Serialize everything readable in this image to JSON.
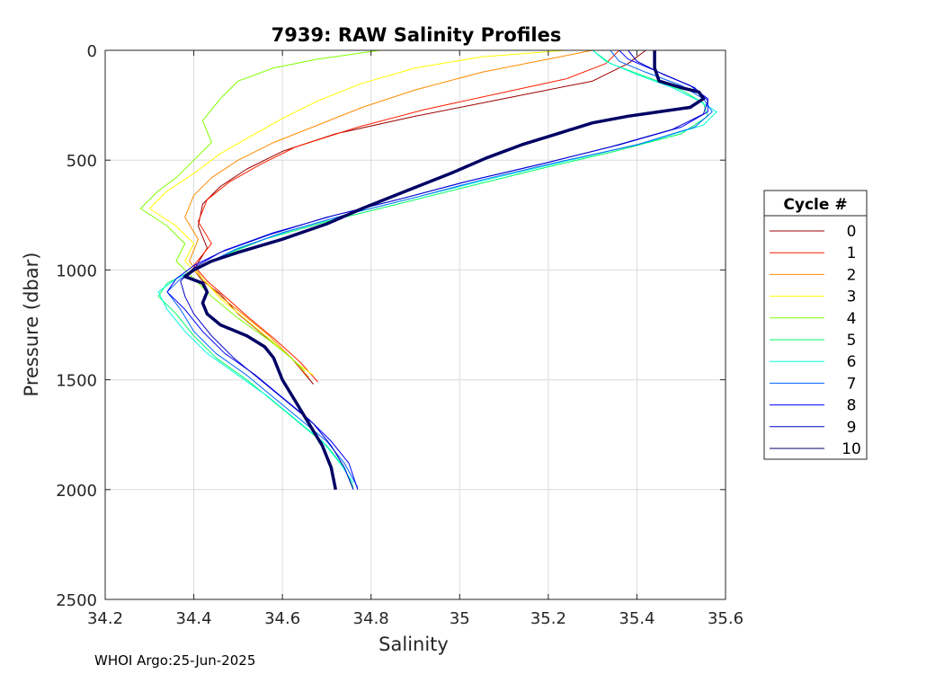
{
  "chart_data": {
    "type": "line",
    "title": "7939: RAW Salinity Profiles",
    "xlabel": "Salinity",
    "ylabel": "Pressure (dbar)",
    "xlim": [
      34.2,
      35.6
    ],
    "ylim": [
      0,
      2500
    ],
    "y_reversed": true,
    "grid": true,
    "xticks": [
      34.2,
      34.4,
      34.6,
      34.8,
      35,
      35.2,
      35.4,
      35.6
    ],
    "xtick_labels": [
      "34.2",
      "34.4",
      "34.6",
      "34.8",
      "35",
      "35.2",
      "35.4",
      "35.6"
    ],
    "yticks": [
      0,
      500,
      1000,
      1500,
      2000,
      2500
    ],
    "ytick_labels": [
      "0",
      "500",
      "1000",
      "1500",
      "2000",
      "2500"
    ],
    "legend": {
      "title": "Cycle #",
      "placement": "right-outside"
    },
    "series": [
      {
        "name": "0",
        "color": "#9b0000",
        "width": 1,
        "points": [
          [
            35.42,
            0
          ],
          [
            35.38,
            60
          ],
          [
            35.3,
            140
          ],
          [
            35.1,
            220
          ],
          [
            34.9,
            300
          ],
          [
            34.72,
            380
          ],
          [
            34.6,
            460
          ],
          [
            34.52,
            540
          ],
          [
            34.46,
            620
          ],
          [
            34.42,
            700
          ],
          [
            34.41,
            800
          ],
          [
            34.43,
            900
          ],
          [
            34.4,
            1000
          ],
          [
            34.42,
            1050
          ],
          [
            34.46,
            1110
          ],
          [
            34.5,
            1200
          ],
          [
            34.56,
            1300
          ],
          [
            34.62,
            1400
          ],
          [
            34.67,
            1520
          ]
        ]
      },
      {
        "name": "1",
        "color": "#ff1f00",
        "width": 1,
        "points": [
          [
            35.36,
            0
          ],
          [
            35.33,
            60
          ],
          [
            35.24,
            130
          ],
          [
            35.08,
            200
          ],
          [
            34.92,
            270
          ],
          [
            34.77,
            350
          ],
          [
            34.63,
            440
          ],
          [
            34.55,
            520
          ],
          [
            34.48,
            600
          ],
          [
            34.43,
            680
          ],
          [
            34.41,
            780
          ],
          [
            34.44,
            880
          ],
          [
            34.4,
            980
          ],
          [
            34.43,
            1050
          ],
          [
            34.47,
            1120
          ],
          [
            34.52,
            1210
          ],
          [
            34.58,
            1310
          ],
          [
            34.64,
            1420
          ],
          [
            34.68,
            1510
          ]
        ]
      },
      {
        "name": "2",
        "color": "#ff8c00",
        "width": 1,
        "points": [
          [
            35.3,
            0
          ],
          [
            35.2,
            40
          ],
          [
            35.05,
            100
          ],
          [
            34.9,
            180
          ],
          [
            34.78,
            260
          ],
          [
            34.68,
            340
          ],
          [
            34.58,
            420
          ],
          [
            34.5,
            500
          ],
          [
            34.44,
            580
          ],
          [
            34.4,
            660
          ],
          [
            34.38,
            760
          ],
          [
            34.41,
            860
          ],
          [
            34.39,
            960
          ],
          [
            34.42,
            1040
          ],
          [
            34.46,
            1120
          ],
          [
            34.51,
            1200
          ],
          [
            34.57,
            1300
          ],
          [
            34.62,
            1400
          ],
          [
            34.66,
            1490
          ]
        ]
      },
      {
        "name": "3",
        "color": "#ffff00",
        "width": 1,
        "points": [
          [
            35.24,
            0
          ],
          [
            35.05,
            30
          ],
          [
            34.9,
            80
          ],
          [
            34.78,
            150
          ],
          [
            34.68,
            230
          ],
          [
            34.6,
            310
          ],
          [
            34.53,
            390
          ],
          [
            34.46,
            470
          ],
          [
            34.4,
            560
          ],
          [
            34.34,
            640
          ],
          [
            34.3,
            720
          ],
          [
            34.36,
            800
          ],
          [
            34.4,
            880
          ],
          [
            34.38,
            960
          ],
          [
            34.42,
            1040
          ],
          [
            34.46,
            1130
          ],
          [
            34.52,
            1230
          ],
          [
            34.58,
            1330
          ],
          [
            34.63,
            1420
          ],
          [
            34.67,
            1480
          ]
        ]
      },
      {
        "name": "4",
        "color": "#7fff00",
        "width": 1,
        "points": [
          [
            34.82,
            0
          ],
          [
            34.68,
            40
          ],
          [
            34.58,
            80
          ],
          [
            34.5,
            140
          ],
          [
            34.46,
            220
          ],
          [
            34.42,
            320
          ],
          [
            34.44,
            420
          ],
          [
            34.4,
            500
          ],
          [
            34.36,
            580
          ],
          [
            34.32,
            640
          ],
          [
            34.28,
            720
          ],
          [
            34.34,
            800
          ],
          [
            34.38,
            880
          ],
          [
            34.36,
            960
          ],
          [
            34.4,
            1040
          ],
          [
            34.44,
            1120
          ],
          [
            34.5,
            1220
          ],
          [
            34.57,
            1320
          ],
          [
            34.62,
            1400
          ],
          [
            34.65,
            1460
          ]
        ]
      },
      {
        "name": "5",
        "color": "#00ff64",
        "width": 1,
        "points": [
          [
            35.3,
            0
          ],
          [
            35.34,
            60
          ],
          [
            35.42,
            120
          ],
          [
            35.5,
            180
          ],
          [
            35.55,
            240
          ],
          [
            35.56,
            300
          ],
          [
            35.5,
            380
          ],
          [
            35.35,
            460
          ],
          [
            35.18,
            540
          ],
          [
            35.02,
            620
          ],
          [
            34.86,
            700
          ],
          [
            34.7,
            780
          ],
          [
            34.56,
            860
          ],
          [
            34.46,
            940
          ],
          [
            34.4,
            1000
          ],
          [
            34.34,
            1060
          ],
          [
            34.32,
            1120
          ],
          [
            34.36,
            1200
          ],
          [
            34.4,
            1300
          ],
          [
            34.45,
            1400
          ],
          [
            34.52,
            1500
          ],
          [
            34.58,
            1600
          ],
          [
            34.64,
            1700
          ],
          [
            34.7,
            1800
          ],
          [
            34.74,
            1900
          ],
          [
            34.76,
            1990
          ]
        ]
      },
      {
        "name": "6",
        "color": "#00ffdc",
        "width": 1,
        "points": [
          [
            35.3,
            0
          ],
          [
            35.33,
            50
          ],
          [
            35.4,
            110
          ],
          [
            35.48,
            170
          ],
          [
            35.54,
            230
          ],
          [
            35.58,
            280
          ],
          [
            35.55,
            340
          ],
          [
            35.42,
            420
          ],
          [
            35.25,
            500
          ],
          [
            35.08,
            580
          ],
          [
            34.92,
            660
          ],
          [
            34.76,
            740
          ],
          [
            34.62,
            820
          ],
          [
            34.5,
            900
          ],
          [
            34.42,
            980
          ],
          [
            34.36,
            1040
          ],
          [
            34.32,
            1100
          ],
          [
            34.34,
            1180
          ],
          [
            34.38,
            1280
          ],
          [
            34.43,
            1380
          ],
          [
            34.5,
            1480
          ],
          [
            34.57,
            1580
          ],
          [
            34.63,
            1680
          ],
          [
            34.69,
            1780
          ],
          [
            34.73,
            1880
          ],
          [
            34.76,
            1970
          ]
        ]
      },
      {
        "name": "7",
        "color": "#0064ff",
        "width": 1,
        "points": [
          [
            35.34,
            0
          ],
          [
            35.36,
            50
          ],
          [
            35.42,
            100
          ],
          [
            35.5,
            160
          ],
          [
            35.55,
            220
          ],
          [
            35.57,
            280
          ],
          [
            35.53,
            350
          ],
          [
            35.4,
            430
          ],
          [
            35.22,
            510
          ],
          [
            35.05,
            590
          ],
          [
            34.9,
            670
          ],
          [
            34.74,
            750
          ],
          [
            34.6,
            830
          ],
          [
            34.49,
            910
          ],
          [
            34.42,
            980
          ],
          [
            34.37,
            1040
          ],
          [
            34.34,
            1100
          ],
          [
            34.37,
            1180
          ],
          [
            34.4,
            1280
          ],
          [
            34.45,
            1380
          ],
          [
            34.52,
            1480
          ],
          [
            34.58,
            1580
          ],
          [
            34.64,
            1680
          ],
          [
            34.7,
            1780
          ],
          [
            34.74,
            1880
          ],
          [
            34.77,
            1990
          ]
        ]
      },
      {
        "name": "8",
        "color": "#0000ff",
        "width": 1,
        "points": [
          [
            35.36,
            0
          ],
          [
            35.38,
            40
          ],
          [
            35.45,
            100
          ],
          [
            35.52,
            160
          ],
          [
            35.56,
            220
          ],
          [
            35.56,
            280
          ],
          [
            35.5,
            350
          ],
          [
            35.36,
            430
          ],
          [
            35.2,
            510
          ],
          [
            35.03,
            590
          ],
          [
            34.88,
            670
          ],
          [
            34.72,
            750
          ],
          [
            34.58,
            830
          ],
          [
            34.47,
            910
          ],
          [
            34.4,
            980
          ],
          [
            34.36,
            1040
          ],
          [
            34.34,
            1100
          ],
          [
            34.38,
            1180
          ],
          [
            34.42,
            1280
          ],
          [
            34.47,
            1380
          ],
          [
            34.54,
            1480
          ],
          [
            34.6,
            1580
          ],
          [
            34.66,
            1680
          ],
          [
            34.71,
            1780
          ],
          [
            34.75,
            1880
          ],
          [
            34.77,
            2000
          ]
        ]
      },
      {
        "name": "9",
        "color": "#0000c8",
        "width": 1,
        "points": [
          [
            35.38,
            0
          ],
          [
            35.4,
            50
          ],
          [
            35.46,
            110
          ],
          [
            35.53,
            170
          ],
          [
            35.56,
            230
          ],
          [
            35.55,
            290
          ],
          [
            35.48,
            360
          ],
          [
            35.34,
            440
          ],
          [
            35.18,
            520
          ],
          [
            35.01,
            600
          ],
          [
            34.86,
            680
          ],
          [
            34.7,
            760
          ],
          [
            34.57,
            840
          ],
          [
            34.46,
            920
          ],
          [
            34.4,
            990
          ],
          [
            34.37,
            1050
          ],
          [
            34.38,
            1120
          ],
          [
            34.4,
            1200
          ],
          [
            34.44,
            1300
          ],
          [
            34.49,
            1400
          ],
          [
            34.55,
            1500
          ],
          [
            34.61,
            1600
          ],
          [
            34.67,
            1700
          ],
          [
            34.71,
            1800
          ],
          [
            34.74,
            1900
          ],
          [
            34.76,
            2000
          ]
        ]
      },
      {
        "name": "10",
        "color": "#000064",
        "width": 3.5,
        "points": [
          [
            35.44,
            0
          ],
          [
            35.44,
            80
          ],
          [
            35.45,
            140
          ],
          [
            35.5,
            170
          ],
          [
            35.54,
            190
          ],
          [
            35.55,
            220
          ],
          [
            35.52,
            260
          ],
          [
            35.45,
            280
          ],
          [
            35.38,
            300
          ],
          [
            35.3,
            330
          ],
          [
            35.22,
            380
          ],
          [
            35.14,
            430
          ],
          [
            35.06,
            490
          ],
          [
            34.98,
            560
          ],
          [
            34.88,
            640
          ],
          [
            34.78,
            720
          ],
          [
            34.7,
            790
          ],
          [
            34.6,
            860
          ],
          [
            34.5,
            920
          ],
          [
            34.44,
            960
          ],
          [
            34.4,
            1000
          ],
          [
            34.38,
            1030
          ],
          [
            34.42,
            1060
          ],
          [
            34.43,
            1100
          ],
          [
            34.42,
            1150
          ],
          [
            34.43,
            1200
          ],
          [
            34.46,
            1250
          ],
          [
            34.52,
            1300
          ],
          [
            34.56,
            1350
          ],
          [
            34.58,
            1400
          ],
          [
            34.6,
            1500
          ],
          [
            34.63,
            1600
          ],
          [
            34.66,
            1700
          ],
          [
            34.69,
            1800
          ],
          [
            34.71,
            1900
          ],
          [
            34.72,
            2000
          ]
        ]
      }
    ]
  },
  "footer": {
    "text": "WHOI Argo:25-Jun-2025"
  }
}
